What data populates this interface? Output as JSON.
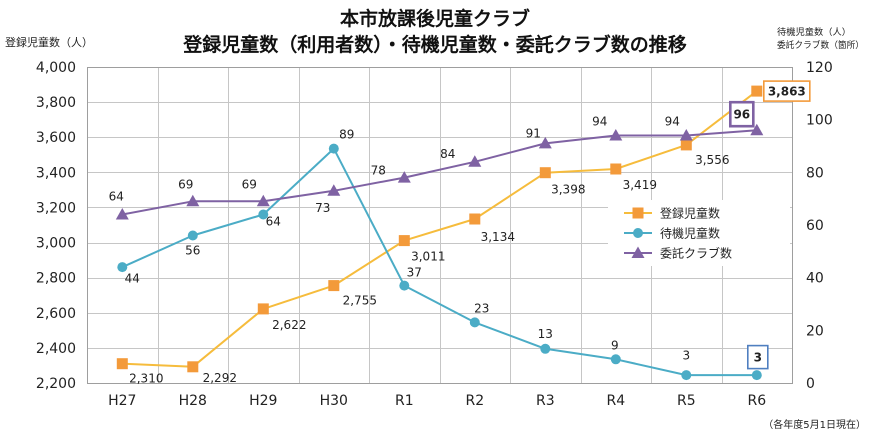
{
  "chart_data": {
    "type": "line",
    "title": "本市放課後児童クラブ",
    "subtitle": "登録児童数（利用者数）・待機児童数・委託クラブ数の推移",
    "categories": [
      "H27",
      "H28",
      "H29",
      "H30",
      "R1",
      "R2",
      "R3",
      "R4",
      "R5",
      "R6"
    ],
    "y_left": {
      "label": "登録児童数（人）",
      "range": [
        2200,
        4000
      ],
      "ticks": [
        2200,
        2400,
        2600,
        2800,
        3000,
        3200,
        3400,
        3600,
        3800,
        4000
      ],
      "tick_labels": [
        "2,200",
        "2,400",
        "2,600",
        "2,800",
        "3,000",
        "3,200",
        "3,400",
        "3,600",
        "3,800",
        "4,000"
      ]
    },
    "y_right": {
      "label_line1": "待機児童数（人）",
      "label_line2": "委託クラブ数（箇所）",
      "range": [
        0,
        120
      ],
      "ticks": [
        0,
        20,
        40,
        60,
        80,
        100,
        120
      ],
      "tick_labels": [
        "0",
        "20",
        "40",
        "60",
        "80",
        "100",
        "120"
      ]
    },
    "series": [
      {
        "name": "登録児童数",
        "y_axis": "left",
        "marker": "square",
        "color": "#F39A3A",
        "line_color": "#F6BC3C",
        "values": [
          2310,
          2292,
          2622,
          2755,
          3011,
          3134,
          3398,
          3419,
          3556,
          3863
        ],
        "labels": [
          "2,310",
          "2,292",
          "2,622",
          "2,755",
          "3,011",
          "3,134",
          "3,398",
          "3,419",
          "3,556",
          "3,863"
        ]
      },
      {
        "name": "待機児童数",
        "y_axis": "right",
        "marker": "circle",
        "color": "#4BACC6",
        "line_color": "#4BACC6",
        "values": [
          44,
          56,
          64,
          89,
          37,
          23,
          13,
          9,
          3,
          3
        ],
        "labels": [
          "44",
          "56",
          "64",
          "89",
          "37",
          "23",
          "13",
          "9",
          "3",
          "3"
        ]
      },
      {
        "name": "委託クラブ数",
        "y_axis": "right",
        "marker": "triangle",
        "color": "#7F62A3",
        "line_color": "#7F62A3",
        "values": [
          64,
          69,
          69,
          73,
          78,
          84,
          91,
          94,
          94,
          96
        ],
        "labels": [
          "64",
          "69",
          "69",
          "73",
          "78",
          "84",
          "91",
          "94",
          "94",
          "96"
        ]
      }
    ],
    "legend": "right",
    "grid": true,
    "note": "（各年度5月1日現在）"
  }
}
